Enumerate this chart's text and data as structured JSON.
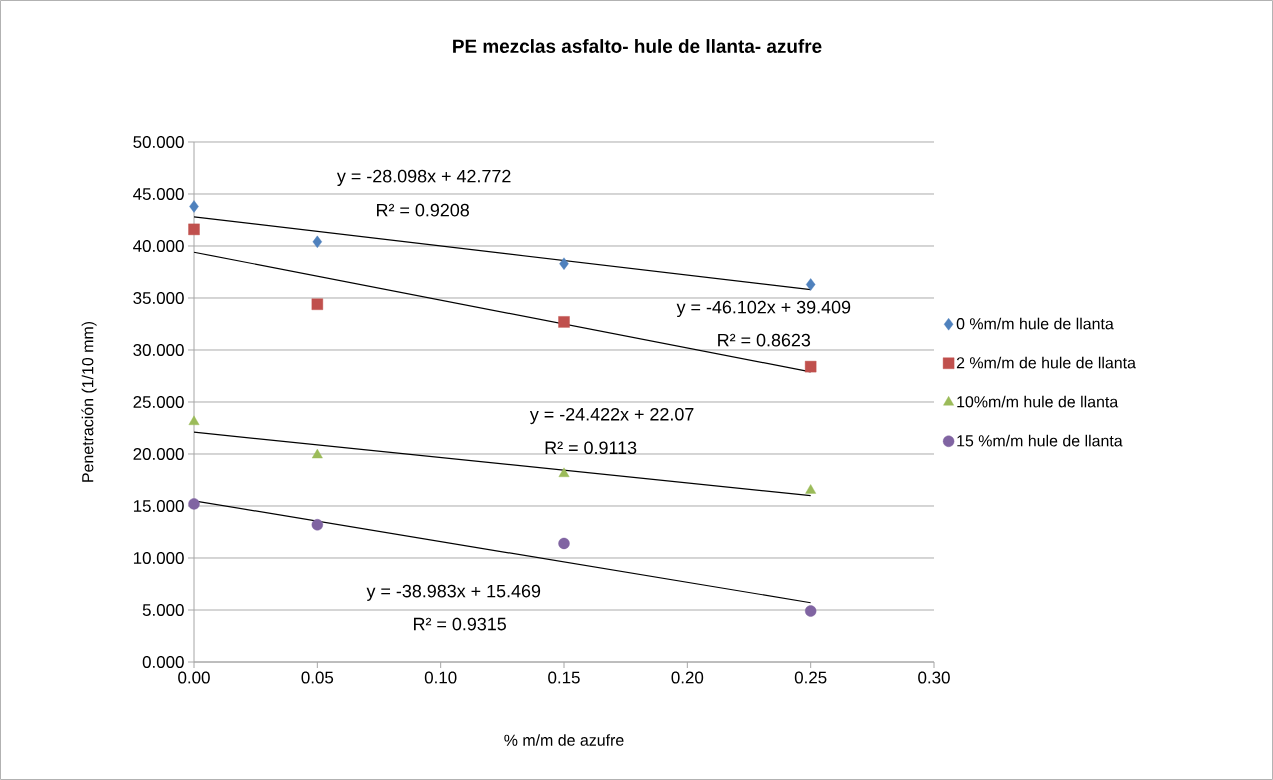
{
  "chart_data": {
    "type": "scatter",
    "title": "PE mezclas asfalto- hule de llanta- azufre",
    "xlabel": "%  m/m  de azufre",
    "ylabel": "Penetración (1/10 mm)",
    "xlim": [
      0,
      0.3
    ],
    "ylim": [
      0,
      50
    ],
    "xticks": [
      {
        "value": 0,
        "label": "0.00"
      },
      {
        "value": 0.05,
        "label": "0.05"
      },
      {
        "value": 0.1,
        "label": "0.10"
      },
      {
        "value": 0.15,
        "label": "0.15"
      },
      {
        "value": 0.2,
        "label": "0.20"
      },
      {
        "value": 0.25,
        "label": "0.25"
      },
      {
        "value": 0.3,
        "label": "0.30"
      }
    ],
    "yticks": [
      {
        "value": 0,
        "label": "0.000"
      },
      {
        "value": 5,
        "label": "5.000"
      },
      {
        "value": 10,
        "label": "10.000"
      },
      {
        "value": 15,
        "label": "15.000"
      },
      {
        "value": 20,
        "label": "20.000"
      },
      {
        "value": 25,
        "label": "25.000"
      },
      {
        "value": 30,
        "label": "30.000"
      },
      {
        "value": 35,
        "label": "35.000"
      },
      {
        "value": 40,
        "label": "40.000"
      },
      {
        "value": 45,
        "label": "45.000"
      },
      {
        "value": 50,
        "label": "50.000"
      }
    ],
    "grid": "y",
    "legend": "right",
    "series": [
      {
        "name": "0 %m/m  hule de llanta",
        "color": "#4f81bd",
        "marker": "diamond",
        "x": [
          0,
          0.05,
          0.15,
          0.25
        ],
        "values": [
          43.8,
          40.4,
          38.3,
          36.3
        ]
      },
      {
        "name": "2 %m/m  de hule de llanta",
        "color": "#c0504d",
        "marker": "square",
        "x": [
          0,
          0.05,
          0.15,
          0.25
        ],
        "values": [
          41.6,
          34.4,
          32.7,
          28.4
        ]
      },
      {
        "name": "10%m/m hule de llanta",
        "color": "#9bbb59",
        "marker": "triangle",
        "x": [
          0,
          0.05,
          0.15,
          0.25
        ],
        "values": [
          23.1,
          19.9,
          18.1,
          16.5
        ]
      },
      {
        "name": "15 %m/m hule de llanta",
        "color": "#8064a2",
        "marker": "circle",
        "x": [
          0,
          0.05,
          0.15,
          0.25
        ],
        "values": [
          15.2,
          13.2,
          11.4,
          4.9
        ]
      },
      {
        "type": "line",
        "color": "#000000",
        "marker": "none",
        "x": [
          0,
          0.25
        ],
        "values": [
          42.8,
          35.8
        ]
      },
      {
        "type": "line",
        "color": "#000000",
        "marker": "none",
        "x": [
          0,
          0.25
        ],
        "values": [
          39.4,
          27.9
        ]
      },
      {
        "type": "line",
        "color": "#000000",
        "marker": "none",
        "x": [
          0,
          0.25
        ],
        "values": [
          22.1,
          16.0
        ]
      },
      {
        "type": "line",
        "color": "#000000",
        "marker": "none",
        "x": [
          0,
          0.25
        ],
        "values": [
          15.5,
          5.7
        ]
      }
    ],
    "annotations": [
      "y = -28.098x + 42.772",
      "R² = 0.9208",
      "y = -46.102x + 39.409",
      "R² = 0.8623",
      "y = -24.422x + 22.07",
      "R² = 0.9113",
      "y = -38.983x + 15.469",
      "R² = 0.9315"
    ]
  }
}
